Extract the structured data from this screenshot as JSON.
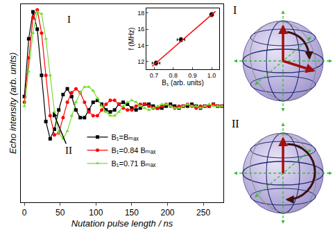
{
  "chart_data": [
    {
      "type": "line",
      "x_label": "Nutation pulse length / ns",
      "y_label": "Echo intensity (arb. units)",
      "xlim": [
        -5,
        278
      ],
      "xticks": [
        0,
        50,
        100,
        150,
        200,
        250
      ],
      "ylim": [
        0,
        103
      ],
      "tick_labels": "x",
      "grid": false,
      "legend": "lower left",
      "x": [
        0,
        6,
        12,
        18,
        24,
        30,
        36,
        42,
        48,
        54,
        60,
        66,
        72,
        78,
        84,
        90,
        96,
        102,
        108,
        114,
        120,
        126,
        132,
        138,
        144,
        150,
        156,
        162,
        168,
        174,
        180,
        186,
        192,
        198,
        204,
        210,
        216,
        222,
        228,
        234,
        240,
        246,
        252,
        258,
        264,
        270,
        276
      ],
      "series": [
        {
          "name": "B₁=Bₘₐₓ",
          "color": "#000000",
          "marker": "square",
          "line_style": "solid",
          "values": [
            55,
            85,
            99,
            90,
            66,
            42,
            33,
            38,
            48,
            56,
            59,
            55,
            48,
            44,
            44,
            48,
            52,
            53,
            51,
            48,
            47,
            48,
            51,
            52,
            51,
            49,
            48,
            49,
            51,
            51,
            50,
            49,
            49,
            50,
            51,
            50,
            49,
            50,
            50,
            51,
            50,
            49,
            50,
            50,
            51,
            50,
            50
          ]
        },
        {
          "name": "B₁=0.84 Bₘₐₓ",
          "color": "#ff0000",
          "marker": "circle",
          "line_style": "solid",
          "values": [
            52,
            75,
            96,
            100,
            88,
            66,
            45,
            35,
            36,
            44,
            52,
            57,
            59,
            57,
            52,
            47,
            45,
            45,
            48,
            51,
            53,
            53,
            51,
            49,
            48,
            48,
            50,
            51,
            51,
            50,
            49,
            49,
            50,
            51,
            50,
            49,
            50,
            50,
            51,
            50,
            49,
            50,
            50,
            50,
            51,
            50,
            50
          ]
        },
        {
          "name": "B₁=0.71 Bₘₐₓ",
          "color": "#77dd33",
          "marker": "triangle-up",
          "line_style": "solid",
          "values": [
            50,
            68,
            88,
            99,
            98,
            85,
            66,
            47,
            36,
            33,
            37,
            45,
            52,
            57,
            60,
            60,
            58,
            54,
            50,
            47,
            45,
            45,
            47,
            50,
            52,
            53,
            52,
            50,
            49,
            48,
            49,
            50,
            51,
            51,
            50,
            49,
            49,
            50,
            51,
            50,
            50,
            49,
            50,
            51,
            50,
            50,
            50
          ]
        }
      ],
      "annotations": [
        {
          "text": "I",
          "x": 62,
          "y": 95
        },
        {
          "text": "II",
          "x": 62,
          "y": 27,
          "arrow_to": [
            40,
            47
          ]
        }
      ]
    },
    {
      "type": "scatter",
      "x_label": "B₁ (arb. units)",
      "y_label": "f (MHz)",
      "xlim": [
        0.66,
        1.04
      ],
      "xticks": [
        0.7,
        0.8,
        0.9,
        {
          "value": 1,
          "label": "1.0"
        }
      ],
      "ylim": [
        11,
        18.6
      ],
      "yticks": [
        12,
        14,
        16,
        18
      ],
      "grid": false,
      "series": [
        {
          "type": "scatter",
          "marker": "square",
          "color": "#000000",
          "x": [
            0.71,
            0.84,
            1.0
          ],
          "values": [
            11.8,
            14.7,
            17.8
          ],
          "x_errors": [
            0.02,
            0.02,
            0.01
          ],
          "y_errors": [
            0.25,
            0.25,
            0.25
          ]
        },
        {
          "type": "line",
          "color": "#ff0000",
          "line_style": "solid",
          "x": [
            0.69,
            1.02
          ],
          "values": [
            11.4,
            18.2
          ]
        }
      ]
    }
  ],
  "bloch_spheres": {
    "labels": [
      "I",
      "II"
    ]
  }
}
